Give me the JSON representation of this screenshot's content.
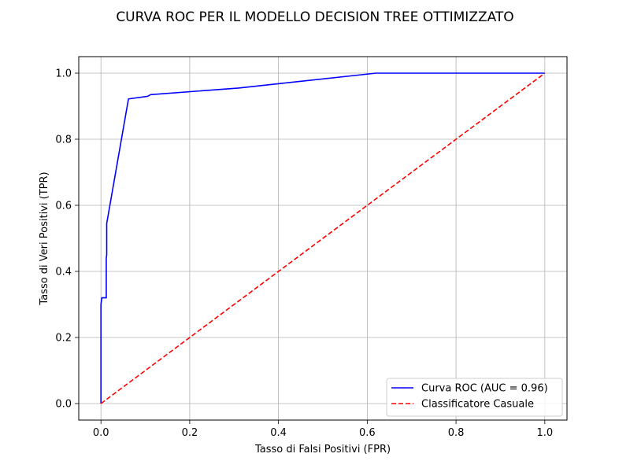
{
  "chart_data": {
    "type": "line",
    "title": "CURVA ROC PER IL MODELLO DECISION TREE OTTIMIZZATO",
    "xlabel": "Tasso di Falsi Positivi (FPR)",
    "ylabel": "Tasso di Veri Positivi (TPR)",
    "xlim": [
      -0.05,
      1.05
    ],
    "ylim": [
      -0.05,
      1.05
    ],
    "xticks": [
      0.0,
      0.2,
      0.4,
      0.6,
      0.8,
      1.0
    ],
    "yticks": [
      0.0,
      0.2,
      0.4,
      0.6,
      0.8,
      1.0
    ],
    "xtick_labels": [
      "0.0",
      "0.2",
      "0.4",
      "0.6",
      "0.8",
      "1.0"
    ],
    "ytick_labels": [
      "0.0",
      "0.2",
      "0.4",
      "0.6",
      "0.8",
      "1.0"
    ],
    "grid": true,
    "legend_position": "lower-right",
    "series": [
      {
        "name": "Curva ROC (AUC = 0.96)",
        "color": "#0000ff",
        "style": "solid",
        "x": [
          0.0,
          0.0,
          0.002,
          0.012,
          0.012,
          0.013,
          0.013,
          0.062,
          0.105,
          0.112,
          0.31,
          0.62,
          1.0
        ],
        "y": [
          0.0,
          0.3,
          0.32,
          0.32,
          0.44,
          0.45,
          0.545,
          0.922,
          0.93,
          0.935,
          0.955,
          1.0,
          1.0
        ]
      },
      {
        "name": "Classificatore Casuale",
        "color": "#ff0000",
        "style": "dashed",
        "x": [
          0.0,
          1.0
        ],
        "y": [
          0.0,
          1.0
        ]
      }
    ]
  }
}
